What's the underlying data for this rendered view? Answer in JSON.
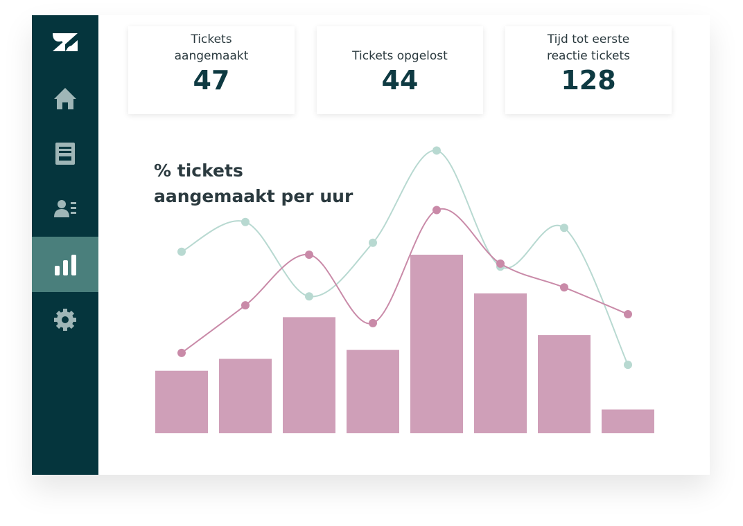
{
  "cards": [
    {
      "label": "Tickets aangemaakt",
      "value": 47
    },
    {
      "label": "Tickets opgelost",
      "value": 44
    },
    {
      "label": "Tijd tot eerste reactie tickets",
      "value": 128
    }
  ],
  "chart_data": {
    "type": "bar_line",
    "title": "% tickets aangemaakt per uur",
    "categories": [
      null,
      null,
      null,
      null,
      null,
      null,
      null,
      null
    ],
    "values": [
      21,
      25,
      39,
      28,
      60,
      47,
      33,
      8
    ],
    "color": "#cf9fb8",
    "ylim": [
      0,
      100
    ],
    "series": [
      {
        "color": "#b8d9d1",
        "values": [
          61,
          71,
          46,
          64,
          95,
          56,
          69,
          23
        ]
      },
      {
        "color": "#c98aa8",
        "values": [
          27,
          43,
          60,
          37,
          75,
          57,
          49,
          40
        ]
      }
    ]
  }
}
